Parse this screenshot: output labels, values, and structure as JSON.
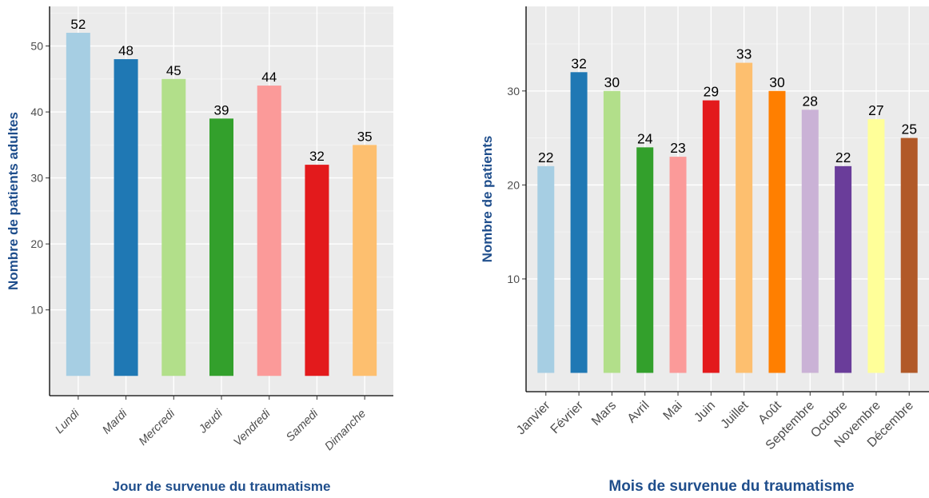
{
  "chart_data": [
    {
      "type": "bar",
      "categories": [
        "Lundi",
        "Mardi",
        "Mercredi",
        "Jeudi",
        "Vendredi",
        "Samedi",
        "Dimanche"
      ],
      "values": [
        52,
        48,
        45,
        39,
        44,
        32,
        35
      ],
      "bar_colors": [
        "#A6CEE3",
        "#1F78B4",
        "#B2DF8A",
        "#33A02C",
        "#FB9A99",
        "#E31A1C",
        "#FDBF6F"
      ],
      "xlabel": "Jour de survenue du traumatisme",
      "ylabel": "Nombre de patients adultes",
      "yticks": [
        10,
        20,
        30,
        40,
        50
      ],
      "ylim": [
        -3,
        56
      ],
      "grid": true,
      "panel_background": "#EBEBEB"
    },
    {
      "type": "bar",
      "categories": [
        "Janvier",
        "Février",
        "Mars",
        "Avril",
        "Mai",
        "Juin",
        "Juillet",
        "Août",
        "Septembre",
        "Octobre",
        "Novembre",
        "Décembre"
      ],
      "values": [
        22,
        32,
        30,
        24,
        23,
        29,
        33,
        30,
        28,
        22,
        27,
        25
      ],
      "bar_colors": [
        "#A6CEE3",
        "#1F78B4",
        "#B2DF8A",
        "#33A02C",
        "#FB9A99",
        "#E31A1C",
        "#FDBF6F",
        "#FF7F00",
        "#CAB2D6",
        "#6A3D9A",
        "#FFFF99",
        "#B15928"
      ],
      "xlabel": "Mois de survenue du traumatisme",
      "ylabel": "Nombre de patients",
      "yticks": [
        10,
        20,
        30
      ],
      "ylim": [
        -2,
        39
      ],
      "grid": true,
      "panel_background": "#EBEBEB"
    }
  ],
  "colors": {
    "axis_title": "#1F4E8C",
    "tick_label": "#4D4D4D"
  }
}
